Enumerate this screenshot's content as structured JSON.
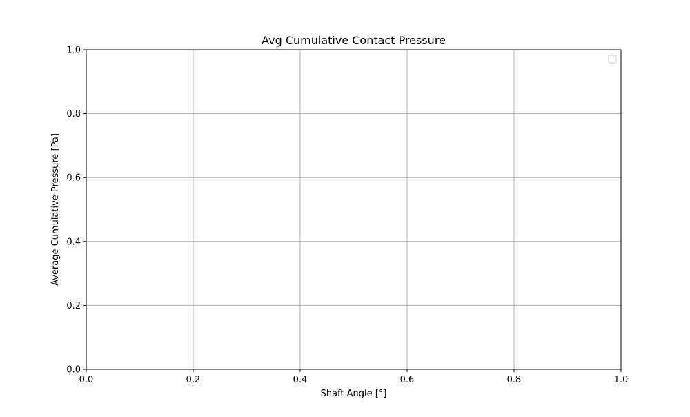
{
  "chart_data": {
    "type": "line",
    "title": "Avg Cumulative Contact Pressure",
    "xlabel": "Shaft Angle [°]",
    "ylabel": "Average Cumulative Pressure [Pa]",
    "xlim": [
      0.0,
      1.0
    ],
    "ylim": [
      0.0,
      1.0
    ],
    "xticks": [
      "0.0",
      "0.2",
      "0.4",
      "0.6",
      "0.8",
      "1.0"
    ],
    "yticks": [
      "0.0",
      "0.2",
      "0.4",
      "0.6",
      "0.8",
      "1.0"
    ],
    "grid": true,
    "legend": "upper-right",
    "series": []
  },
  "colors": {
    "grid": "#b0b0b0",
    "axes": "#000000",
    "legend_border": "#cccccc"
  }
}
